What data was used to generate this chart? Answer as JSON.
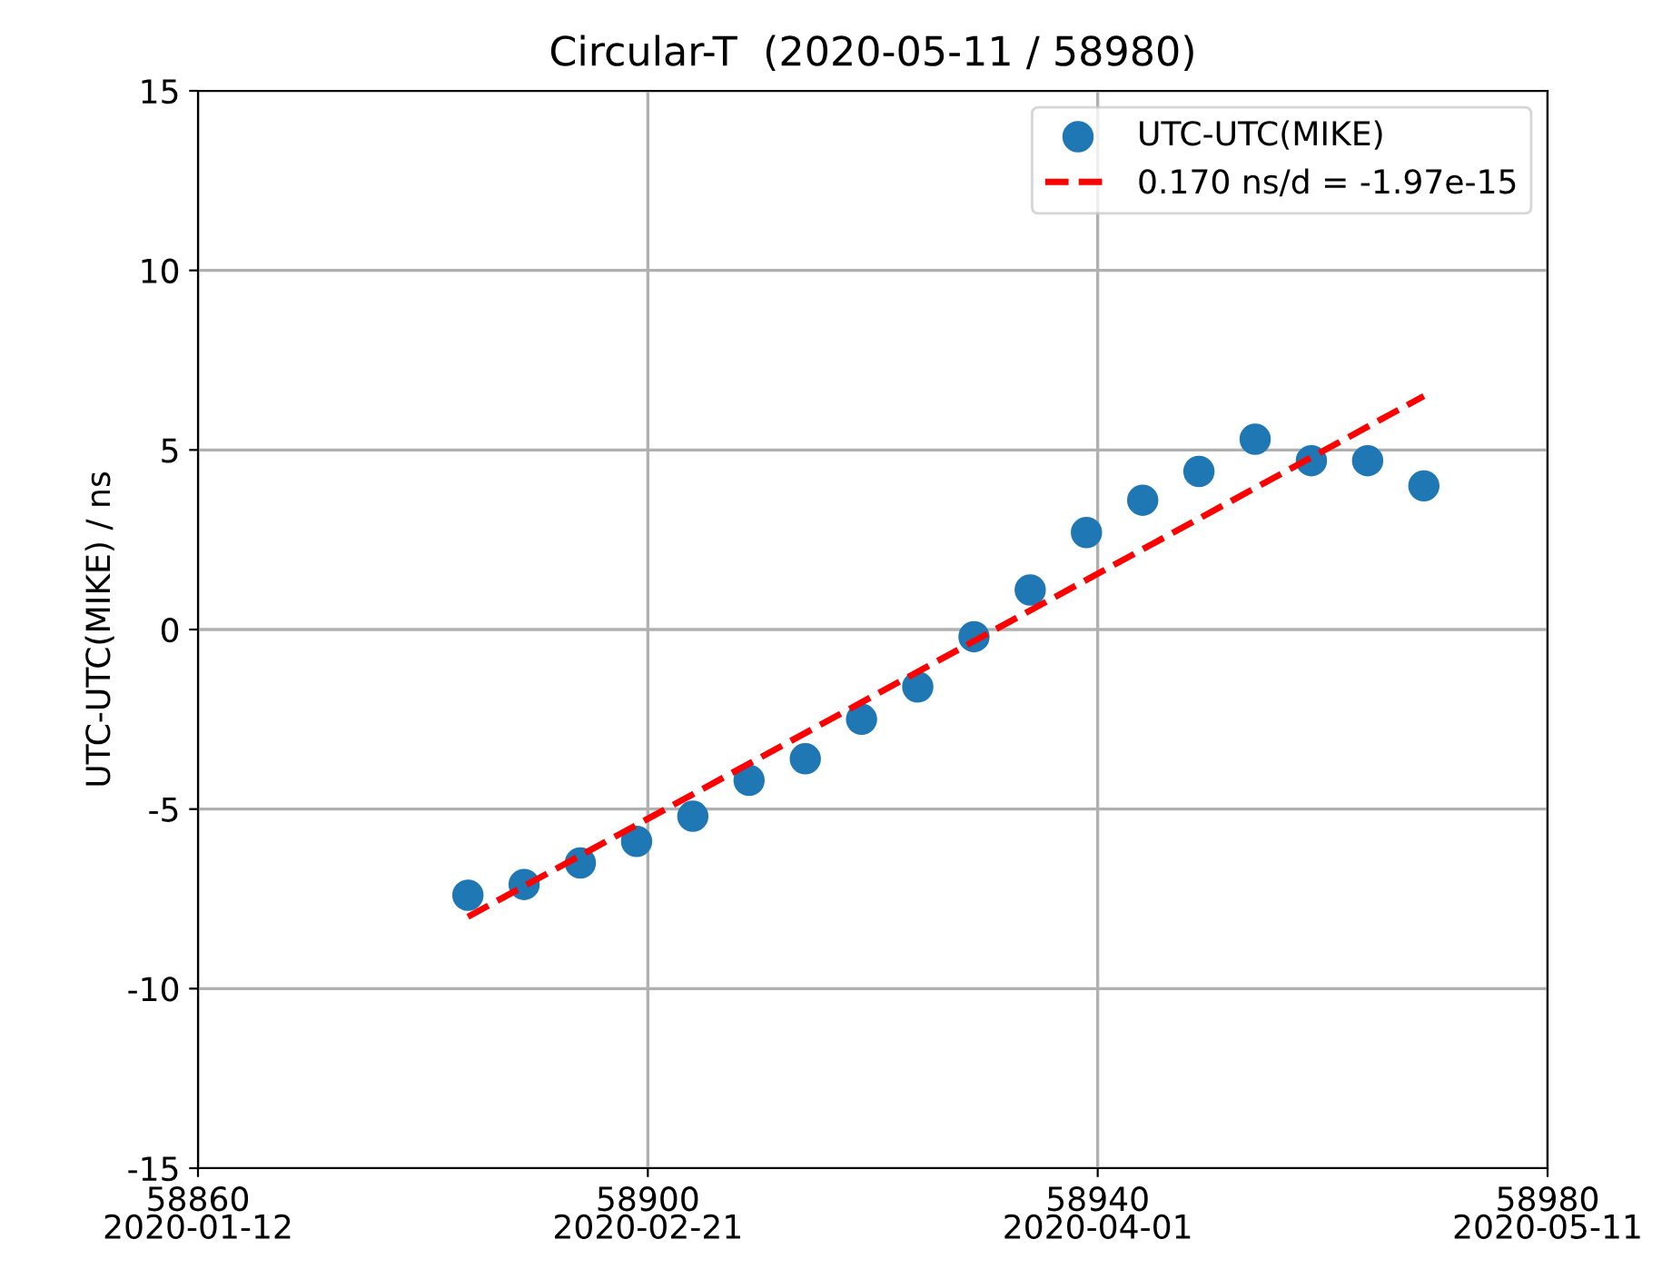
{
  "chart_data": {
    "type": "scatter",
    "title": "Circular-T  (2020-05-11 / 58980)",
    "ylabel": "UTC-UTC(MIKE) / ns",
    "xlim": [
      58860,
      58980
    ],
    "ylim": [
      -15,
      15
    ],
    "xticks": [
      58860,
      58900,
      58940,
      58980
    ],
    "x2lim": [
      "2020-01-12",
      "2020-05-11"
    ],
    "x2ticks": [
      "2020-01-12",
      "2020-02-21",
      "2020-04-01",
      "2020-05-11"
    ],
    "yticks": [
      -15,
      -10,
      -5,
      0,
      5,
      10,
      15
    ],
    "grid": true,
    "legend": "top right",
    "series": [
      {
        "name": "UTC-UTC(MIKE)",
        "marker": "circle",
        "color": "#1f77b4",
        "x": [
          58884,
          58889,
          58894,
          58899,
          58904,
          58909,
          58914,
          58919,
          58924,
          58929,
          58934,
          58939,
          58944,
          58949,
          58954,
          58959,
          58964,
          58969
        ],
        "values": [
          -7.4,
          -7.1,
          -6.5,
          -5.9,
          -5.2,
          -4.2,
          -3.6,
          -2.5,
          -1.6,
          -0.2,
          1.1,
          2.7,
          3.6,
          4.4,
          5.3,
          4.7,
          4.7,
          4.0
        ]
      },
      {
        "name": "0.170 ns/d = -1.97e-15",
        "type": "line",
        "line_style": "dashed",
        "color": "#ff0000",
        "x": [
          58884,
          58969
        ],
        "values": [
          -8.0,
          6.5
        ]
      }
    ]
  }
}
